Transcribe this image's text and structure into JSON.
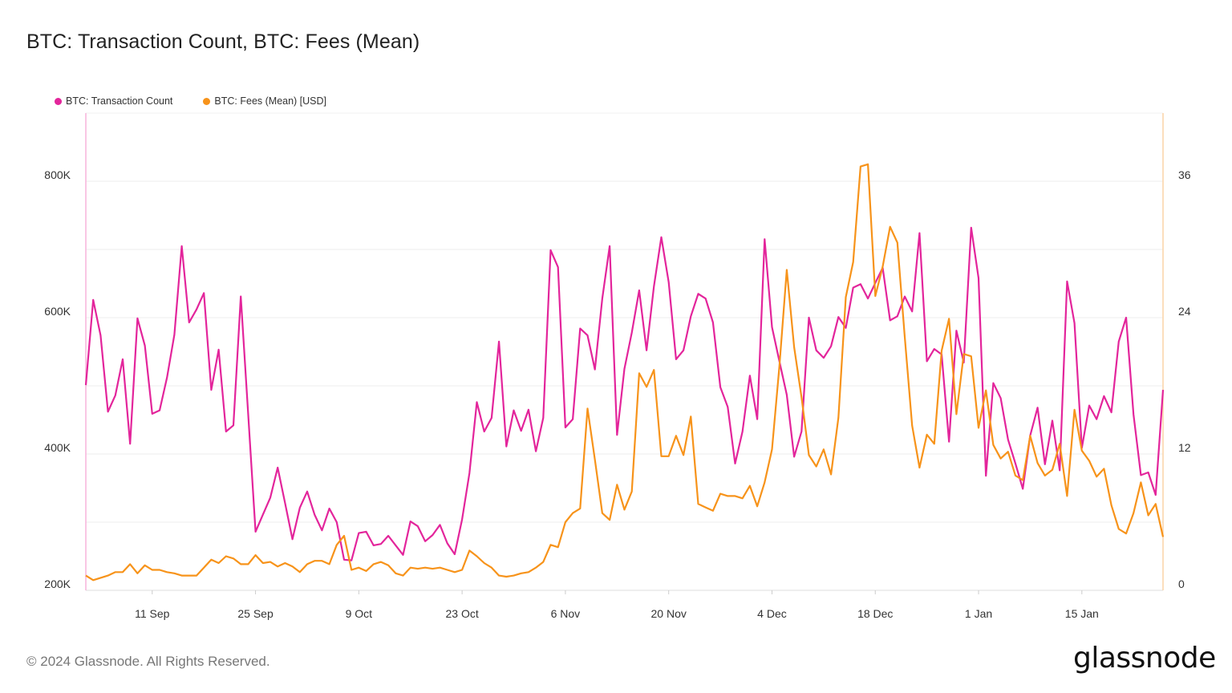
{
  "title": "BTC: Transaction Count, BTC: Fees (Mean)",
  "footer": "© 2024 Glassnode. All Rights Reserved.",
  "logo": "glassnode",
  "chart_data": {
    "type": "line",
    "title": "BTC: Transaction Count, BTC: Fees (Mean)",
    "legend_position": "top-left",
    "grid": true,
    "x": [
      "2023-09-02",
      "2023-09-03",
      "2023-09-04",
      "2023-09-05",
      "2023-09-06",
      "2023-09-07",
      "2023-09-08",
      "2023-09-09",
      "2023-09-10",
      "2023-09-11",
      "2023-09-12",
      "2023-09-13",
      "2023-09-14",
      "2023-09-15",
      "2023-09-16",
      "2023-09-17",
      "2023-09-18",
      "2023-09-19",
      "2023-09-20",
      "2023-09-21",
      "2023-09-22",
      "2023-09-23",
      "2023-09-24",
      "2023-09-25",
      "2023-09-26",
      "2023-09-27",
      "2023-09-28",
      "2023-09-29",
      "2023-09-30",
      "2023-10-01",
      "2023-10-02",
      "2023-10-03",
      "2023-10-04",
      "2023-10-05",
      "2023-10-06",
      "2023-10-07",
      "2023-10-08",
      "2023-10-09",
      "2023-10-10",
      "2023-10-11",
      "2023-10-12",
      "2023-10-13",
      "2023-10-14",
      "2023-10-15",
      "2023-10-16",
      "2023-10-17",
      "2023-10-18",
      "2023-10-19",
      "2023-10-20",
      "2023-10-21",
      "2023-10-22",
      "2023-10-23",
      "2023-10-24",
      "2023-10-25",
      "2023-10-26",
      "2023-10-27",
      "2023-10-28",
      "2023-10-29",
      "2023-10-30",
      "2023-10-31",
      "2023-11-01",
      "2023-11-02",
      "2023-11-03",
      "2023-11-04",
      "2023-11-05",
      "2023-11-06",
      "2023-11-07",
      "2023-11-08",
      "2023-11-09",
      "2023-11-10",
      "2023-11-11",
      "2023-11-12",
      "2023-11-13",
      "2023-11-14",
      "2023-11-15",
      "2023-11-16",
      "2023-11-17",
      "2023-11-18",
      "2023-11-19",
      "2023-11-20",
      "2023-11-21",
      "2023-11-22",
      "2023-11-23",
      "2023-11-24",
      "2023-11-25",
      "2023-11-26",
      "2023-11-27",
      "2023-11-28",
      "2023-11-29",
      "2023-11-30",
      "2023-12-01",
      "2023-12-02",
      "2023-12-03",
      "2023-12-04",
      "2023-12-05",
      "2023-12-06",
      "2023-12-07",
      "2023-12-08",
      "2023-12-09",
      "2023-12-10",
      "2023-12-11",
      "2023-12-12",
      "2023-12-13",
      "2023-12-14",
      "2023-12-15",
      "2023-12-16",
      "2023-12-17",
      "2023-12-18",
      "2023-12-19",
      "2023-12-20",
      "2023-12-21",
      "2023-12-22",
      "2023-12-23",
      "2023-12-24",
      "2023-12-25",
      "2023-12-26",
      "2023-12-27",
      "2023-12-28",
      "2023-12-29",
      "2023-12-30",
      "2023-12-31",
      "2024-01-01",
      "2024-01-02",
      "2024-01-03",
      "2024-01-04",
      "2024-01-05",
      "2024-01-06",
      "2024-01-07",
      "2024-01-08",
      "2024-01-09",
      "2024-01-10",
      "2024-01-11",
      "2024-01-12",
      "2024-01-13",
      "2024-01-14",
      "2024-01-15",
      "2024-01-16",
      "2024-01-17",
      "2024-01-18",
      "2024-01-19",
      "2024-01-20",
      "2024-01-21",
      "2024-01-22",
      "2024-01-23",
      "2024-01-24",
      "2024-01-25",
      "2024-01-26"
    ],
    "x_ticks": [
      {
        "date": "2023-09-11",
        "label": "11 Sep"
      },
      {
        "date": "2023-09-25",
        "label": "25 Sep"
      },
      {
        "date": "2023-10-09",
        "label": "9 Oct"
      },
      {
        "date": "2023-10-23",
        "label": "23 Oct"
      },
      {
        "date": "2023-11-06",
        "label": "6 Nov"
      },
      {
        "date": "2023-11-20",
        "label": "20 Nov"
      },
      {
        "date": "2023-12-04",
        "label": "4 Dec"
      },
      {
        "date": "2023-12-18",
        "label": "18 Dec"
      },
      {
        "date": "2024-01-01",
        "label": "1 Jan"
      },
      {
        "date": "2024-01-15",
        "label": "15 Jan"
      }
    ],
    "y_left": {
      "ylim": [
        200000,
        900000
      ],
      "ticks": [
        {
          "value": 200000,
          "label": "200K"
        },
        {
          "value": 400000,
          "label": "400K"
        },
        {
          "value": 600000,
          "label": "600K"
        },
        {
          "value": 800000,
          "label": "800K"
        }
      ]
    },
    "y_right": {
      "ylim": [
        0,
        42
      ],
      "ticks": [
        {
          "value": 0,
          "label": "0"
        },
        {
          "value": 12,
          "label": "12"
        },
        {
          "value": 24,
          "label": "24"
        },
        {
          "value": 36,
          "label": "36"
        }
      ]
    },
    "series": [
      {
        "name": "BTC: Transaction Count",
        "axis": "left",
        "color": "#e3259b",
        "values": [
          501000,
          626000,
          574000,
          462000,
          486000,
          539000,
          415000,
          599000,
          559000,
          459000,
          464000,
          512000,
          575000,
          705000,
          593000,
          612000,
          636000,
          494000,
          553000,
          433000,
          442000,
          631000,
          459000,
          286000,
          311000,
          336000,
          380000,
          328000,
          275000,
          321000,
          345000,
          311000,
          288000,
          320000,
          300000,
          245000,
          244000,
          284000,
          286000,
          266000,
          268000,
          280000,
          266000,
          252000,
          301000,
          294000,
          272000,
          281000,
          296000,
          269000,
          253000,
          304000,
          372000,
          476000,
          433000,
          453000,
          565000,
          411000,
          464000,
          434000,
          465000,
          404000,
          453000,
          699000,
          674000,
          439000,
          451000,
          584000,
          574000,
          524000,
          628000,
          705000,
          428000,
          525000,
          578000,
          640000,
          552000,
          646000,
          718000,
          652000,
          539000,
          552000,
          602000,
          635000,
          628000,
          593000,
          498000,
          469000,
          386000,
          433000,
          515000,
          451000,
          715000,
          586000,
          536000,
          487000,
          396000,
          433000,
          600000,
          552000,
          541000,
          558000,
          601000,
          585000,
          644000,
          649000,
          628000,
          651000,
          673000,
          596000,
          602000,
          631000,
          609000,
          724000,
          536000,
          554000,
          546000,
          418000,
          581000,
          534000,
          732000,
          658000,
          368000,
          504000,
          482000,
          421000,
          386000,
          349000,
          427000,
          468000,
          385000,
          449000,
          376000,
          653000,
          592000,
          409000,
          471000,
          451000,
          485000,
          461000,
          565000,
          600000,
          458000,
          369000,
          373000,
          340000,
          494000
        ]
      },
      {
        "name": "BTC: Fees (Mean) [USD]",
        "axis": "right",
        "color": "#f7931a",
        "values": [
          1.3,
          0.9,
          1.1,
          1.3,
          1.6,
          1.6,
          2.3,
          1.5,
          2.2,
          1.8,
          1.8,
          1.6,
          1.5,
          1.3,
          1.3,
          1.3,
          2.0,
          2.7,
          2.4,
          3.0,
          2.8,
          2.3,
          2.3,
          3.1,
          2.4,
          2.5,
          2.1,
          2.4,
          2.1,
          1.6,
          2.3,
          2.6,
          2.6,
          2.3,
          4.0,
          4.8,
          1.8,
          2.0,
          1.7,
          2.3,
          2.5,
          2.2,
          1.5,
          1.3,
          2.0,
          1.9,
          2.0,
          1.9,
          2.0,
          1.8,
          1.6,
          1.8,
          3.5,
          3.0,
          2.4,
          2.0,
          1.3,
          1.2,
          1.3,
          1.5,
          1.6,
          2.0,
          2.5,
          4.0,
          3.8,
          6.0,
          6.8,
          7.2,
          16.0,
          11.5,
          6.8,
          6.2,
          9.3,
          7.1,
          8.7,
          19.1,
          17.9,
          19.4,
          11.8,
          11.8,
          13.6,
          11.9,
          15.3,
          7.6,
          7.3,
          7.0,
          8.5,
          8.3,
          8.3,
          8.1,
          9.2,
          7.4,
          9.5,
          12.4,
          19.7,
          28.2,
          21.4,
          17.0,
          11.9,
          10.9,
          12.4,
          10.2,
          15.2,
          25.8,
          28.9,
          37.3,
          37.5,
          25.9,
          28.5,
          32.0,
          30.6,
          22.3,
          14.5,
          10.8,
          13.7,
          12.9,
          21.1,
          23.9,
          15.5,
          20.8,
          20.6,
          14.3,
          17.6,
          12.8,
          11.6,
          12.2,
          10.1,
          9.7,
          13.6,
          11.2,
          10.1,
          10.6,
          12.9,
          8.3,
          15.9,
          12.3,
          11.4,
          10.0,
          10.7,
          7.5,
          5.4,
          5.0,
          6.8,
          9.5,
          6.6,
          7.6,
          4.7
        ]
      }
    ]
  }
}
